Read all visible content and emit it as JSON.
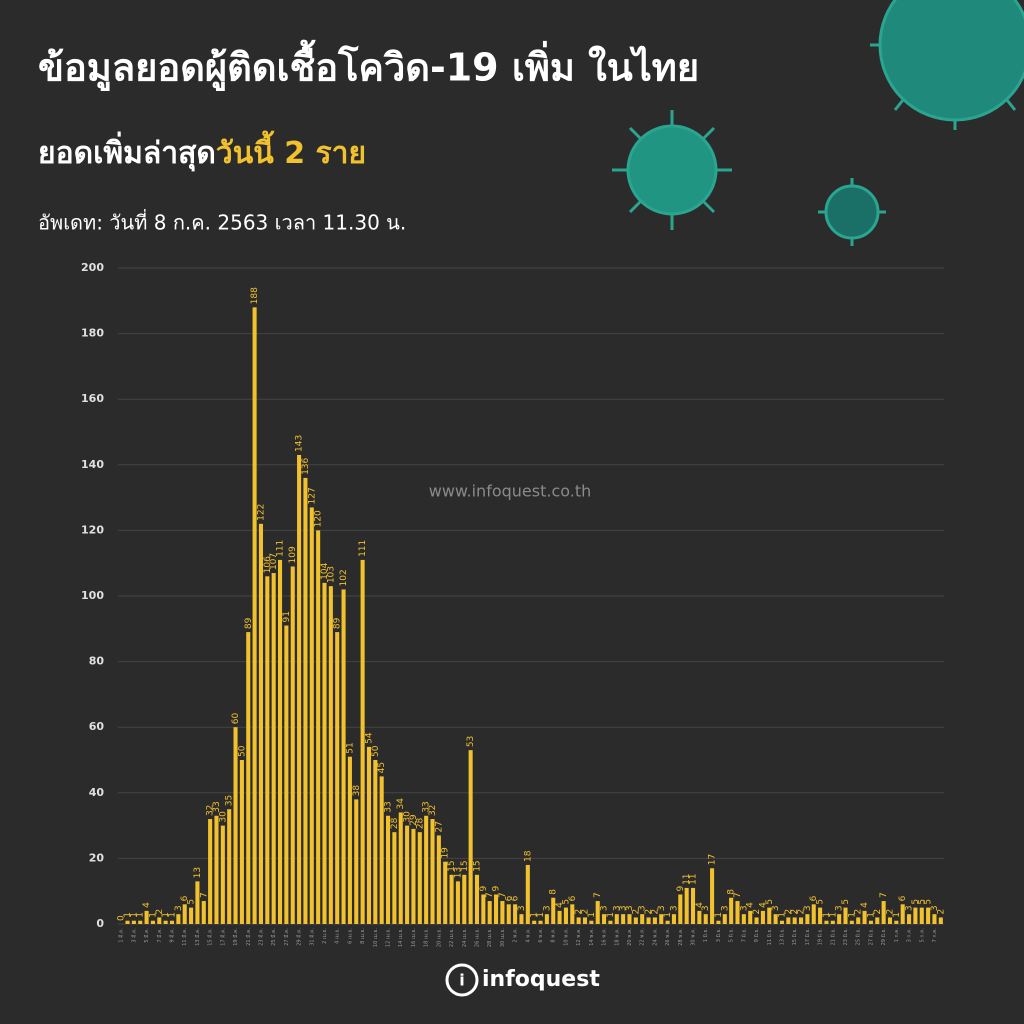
{
  "chart_data": {
    "type": "bar",
    "title": "ข้อมูลยอดผู้ติดเชื้อโควิด-19 เพิ่ม ในไทย",
    "subtitle": "ยอดเพิ่มล่าสุด",
    "subtitle_highlight": "วันนี้  2 ราย",
    "update_note": "อัพเดท: วันที่  8 ก.ค. 2563 เวลา 11.30 น.",
    "watermark": "www.infoquest.co.th",
    "logo": "infoquest",
    "color": "#f2c12e",
    "ylim": [
      0,
      200
    ],
    "yticks": [
      0,
      20,
      40,
      60,
      80,
      100,
      120,
      140,
      160,
      180,
      200
    ],
    "grid": true,
    "categories": [
      "1 มี.ค.",
      null,
      "3 มี.ค.",
      null,
      "5 มี.ค.",
      null,
      "7 มี.ค.",
      null,
      "9 มี.ค.",
      null,
      "11 มี.ค.",
      null,
      "13 มี.ค.",
      null,
      "15 มี.ค.",
      null,
      "17 มี.ค.",
      null,
      "19 มี.ค.",
      null,
      "21 มี.ค.",
      null,
      "23 มี.ค.",
      null,
      "25 มี.ค.",
      null,
      "27 มี.ค.",
      null,
      "29 มี.ค.",
      null,
      "31 มี.ค.",
      null,
      "2 เม.ย.",
      null,
      "4 เม.ย.",
      null,
      "6 เม.ย.",
      null,
      "8 เม.ย.",
      null,
      "10 เม.ย.",
      null,
      "12 เม.ย.",
      null,
      "14 เม.ย.",
      null,
      "16 เม.ย.",
      null,
      "18 เม.ย.",
      null,
      "20 เม.ย.",
      null,
      "22 เม.ย.",
      null,
      "24 เม.ย.",
      null,
      "26 เม.ย.",
      null,
      "28 เม.ย.",
      null,
      "30 เม.ย.",
      null,
      "2 พ.ค.",
      null,
      "4 พ.ค.",
      null,
      "6 พ.ค.",
      null,
      "8 พ.ค.",
      null,
      "10 พ.ค.",
      null,
      "12 พ.ค.",
      null,
      "14 พ.ค.",
      null,
      "16 พ.ค.",
      null,
      "18 พ.ค.",
      null,
      "20 พ.ค.",
      null,
      "22 พ.ค.",
      null,
      "24 พ.ค.",
      null,
      "26 พ.ค.",
      null,
      "28 พ.ค.",
      null,
      "30 พ.ค.",
      null,
      "1 มิ.ย.",
      null,
      "3 มิ.ย.",
      null,
      "5 มิ.ย.",
      null,
      "7 มิ.ย.",
      null,
      "9 มิ.ย.",
      null,
      "11 มิ.ย.",
      null,
      "13 มิ.ย.",
      null,
      "15 มิ.ย.",
      null,
      "17 มิ.ย.",
      null,
      "19 มิ.ย.",
      null,
      "21 มิ.ย.",
      null,
      "23 มิ.ย.",
      null,
      "25 มิ.ย.",
      null,
      "27 มิ.ย.",
      null,
      "29 มิ.ย.",
      null,
      "1 ก.ค.",
      null,
      "3 ก.ค.",
      null,
      "5 ก.ค.",
      null,
      "7 ก.ค.",
      null
    ],
    "values": [
      0,
      1,
      1,
      1,
      4,
      1,
      2,
      1,
      1,
      3,
      6,
      5,
      13,
      7,
      32,
      33,
      30,
      35,
      60,
      50,
      89,
      188,
      122,
      106,
      107,
      111,
      91,
      109,
      143,
      136,
      127,
      120,
      104,
      103,
      89,
      102,
      51,
      38,
      111,
      54,
      50,
      45,
      33,
      28,
      34,
      30,
      29,
      28,
      33,
      32,
      27,
      19,
      15,
      13,
      15,
      53,
      15,
      9,
      7,
      9,
      7,
      6,
      6,
      3,
      18,
      1,
      1,
      3,
      8,
      4,
      5,
      6,
      2,
      2,
      1,
      7,
      3,
      1,
      3,
      3,
      3,
      2,
      3,
      2,
      2,
      3,
      1,
      3,
      9,
      11,
      11,
      4,
      3,
      17,
      1,
      3,
      8,
      7,
      3,
      4,
      2,
      4,
      5,
      3,
      1,
      2,
      2,
      2,
      3,
      6,
      5,
      1,
      1,
      3,
      5,
      1,
      2,
      4,
      1,
      2,
      7,
      2,
      1,
      6,
      3,
      5,
      5,
      5,
      3,
      2
    ]
  }
}
